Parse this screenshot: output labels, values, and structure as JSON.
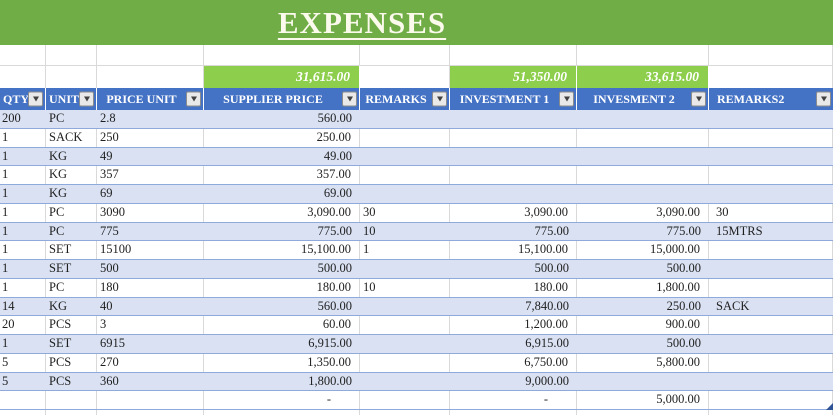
{
  "title": "EXPENSES",
  "icons": {
    "filter": "chevron-down"
  },
  "colors": {
    "banner_green": "#70AD47",
    "totals_green": "#8DCE4C",
    "header_blue": "#4472C4",
    "band_blue": "#D9E1F2",
    "row_border_blue": "#8EA9DB",
    "gridline_gray": "#D9D9D9"
  },
  "columns": [
    {
      "key": "qty",
      "label": "QTY"
    },
    {
      "key": "unit",
      "label": "UNIT"
    },
    {
      "key": "price_unit",
      "label": "PRICE UNIT"
    },
    {
      "key": "supplier_price",
      "label": "SUPPLIER PRICE"
    },
    {
      "key": "remarks",
      "label": "REMARKS"
    },
    {
      "key": "investment_1",
      "label": "INVESTMENT 1"
    },
    {
      "key": "invesment_2",
      "label": "INVESMENT 2"
    },
    {
      "key": "remarks2",
      "label": "REMARKS2"
    }
  ],
  "totals": {
    "supplier_price": "31,615.00",
    "investment_1": "51,350.00",
    "invesment_2": "33,615.00"
  },
  "rows": [
    {
      "qty": "200",
      "unit": "PC",
      "price_unit": "2.8",
      "supplier_price": "560.00",
      "remarks": "",
      "investment_1": "",
      "invesment_2": "",
      "remarks2": ""
    },
    {
      "qty": "1",
      "unit": "SACK",
      "price_unit": "250",
      "supplier_price": "250.00",
      "remarks": "",
      "investment_1": "",
      "invesment_2": "",
      "remarks2": ""
    },
    {
      "qty": "1",
      "unit": "KG",
      "price_unit": "49",
      "supplier_price": "49.00",
      "remarks": "",
      "investment_1": "",
      "invesment_2": "",
      "remarks2": ""
    },
    {
      "qty": "1",
      "unit": "KG",
      "price_unit": "357",
      "supplier_price": "357.00",
      "remarks": "",
      "investment_1": "",
      "invesment_2": "",
      "remarks2": ""
    },
    {
      "qty": "1",
      "unit": "KG",
      "price_unit": "69",
      "supplier_price": "69.00",
      "remarks": "",
      "investment_1": "",
      "invesment_2": "",
      "remarks2": ""
    },
    {
      "qty": "1",
      "unit": "PC",
      "price_unit": "3090",
      "supplier_price": "3,090.00",
      "remarks": "30",
      "investment_1": "3,090.00",
      "invesment_2": "3,090.00",
      "remarks2": "30"
    },
    {
      "qty": "1",
      "unit": "PC",
      "price_unit": "775",
      "supplier_price": "775.00",
      "remarks": "10",
      "investment_1": "775.00",
      "invesment_2": "775.00",
      "remarks2": "15MTRS"
    },
    {
      "qty": "1",
      "unit": "SET",
      "price_unit": "15100",
      "supplier_price": "15,100.00",
      "remarks": "1",
      "investment_1": "15,100.00",
      "invesment_2": "15,000.00",
      "remarks2": ""
    },
    {
      "qty": "1",
      "unit": "SET",
      "price_unit": "500",
      "supplier_price": "500.00",
      "remarks": "",
      "investment_1": "500.00",
      "invesment_2": "500.00",
      "remarks2": ""
    },
    {
      "qty": "1",
      "unit": "PC",
      "price_unit": "180",
      "supplier_price": "180.00",
      "remarks": "10",
      "investment_1": "180.00",
      "invesment_2": "1,800.00",
      "remarks2": ""
    },
    {
      "qty": "14",
      "unit": "KG",
      "price_unit": "40",
      "supplier_price": "560.00",
      "remarks": "",
      "investment_1": "7,840.00",
      "invesment_2": "250.00",
      "remarks2": "SACK"
    },
    {
      "qty": "20",
      "unit": "PCS",
      "price_unit": "3",
      "supplier_price": "60.00",
      "remarks": "",
      "investment_1": "1,200.00",
      "invesment_2": "900.00",
      "remarks2": ""
    },
    {
      "qty": "1",
      "unit": "SET",
      "price_unit": "6915",
      "supplier_price": "6,915.00",
      "remarks": "",
      "investment_1": "6,915.00",
      "invesment_2": "500.00",
      "remarks2": ""
    },
    {
      "qty": "5",
      "unit": "PCS",
      "price_unit": "270",
      "supplier_price": "1,350.00",
      "remarks": "",
      "investment_1": "6,750.00",
      "invesment_2": "5,800.00",
      "remarks2": ""
    },
    {
      "qty": "5",
      "unit": "PCS",
      "price_unit": "360",
      "supplier_price": "1,800.00",
      "remarks": "",
      "investment_1": "9,000.00",
      "invesment_2": "",
      "remarks2": ""
    },
    {
      "qty": "",
      "unit": "",
      "price_unit": "",
      "supplier_price": "-",
      "remarks": "",
      "investment_1": "-",
      "invesment_2": "5,000.00",
      "remarks2": ""
    }
  ]
}
